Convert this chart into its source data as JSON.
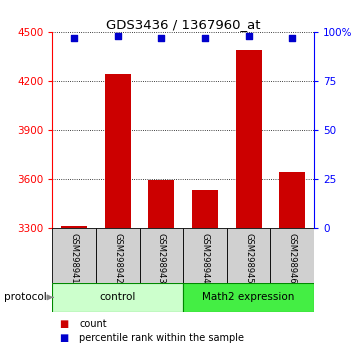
{
  "title": "GDS3436 / 1367960_at",
  "samples": [
    "GSM298941",
    "GSM298942",
    "GSM298943",
    "GSM298944",
    "GSM298945",
    "GSM298946"
  ],
  "counts": [
    3312,
    4245,
    3595,
    3535,
    4390,
    3645
  ],
  "percentile_ranks": [
    97,
    98,
    97,
    97,
    98,
    97
  ],
  "ylim_left": [
    3300,
    4500
  ],
  "yticks_left": [
    3300,
    3600,
    3900,
    4200,
    4500
  ],
  "ylim_right": [
    0,
    100
  ],
  "yticks_right": [
    0,
    25,
    50,
    75,
    100
  ],
  "bar_color": "#cc0000",
  "dot_color": "#0000cc",
  "bar_width": 0.6,
  "group0_label": "control",
  "group0_color": "#bbffbb",
  "group0_darker": "#44dd44",
  "group1_label": "Math2 expression",
  "group1_color": "#bbffbb",
  "group1_darker": "#44dd44",
  "protocol_label": "protocol",
  "legend_count_label": "count",
  "legend_pct_label": "percentile rank within the sample",
  "background_color": "#ffffff",
  "plot_bg_color": "#ffffff",
  "sample_bg_color": "#d0d0d0",
  "control_color": "#ccffcc",
  "math2_color": "#44ee44"
}
